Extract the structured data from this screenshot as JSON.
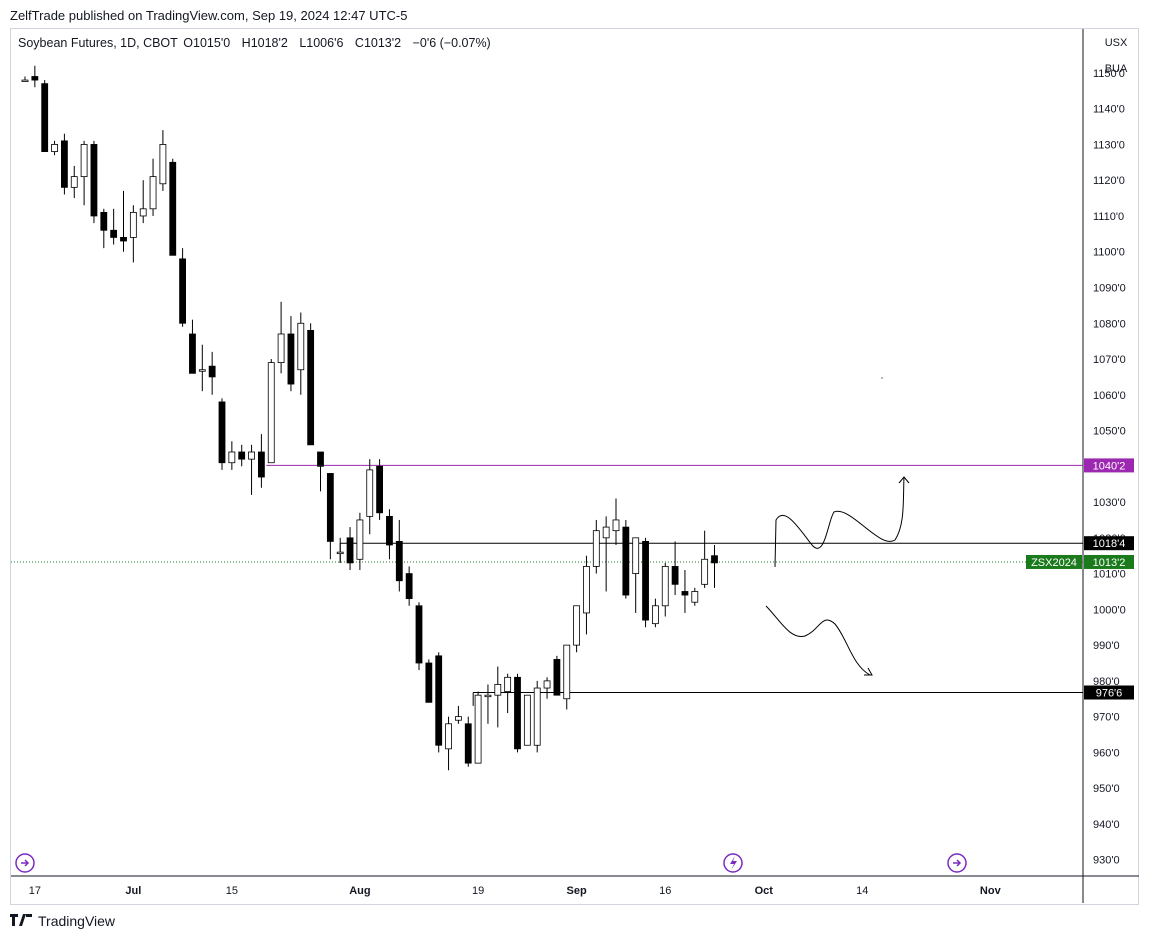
{
  "publisher_line": "ZelfTrade published on TradingView.com, Sep 19, 2024 12:47 UTC-5",
  "legend": {
    "symbol": "Soybean Futures, 1D, CBOT",
    "open_label": "O",
    "open": "1015'0",
    "high_label": "H",
    "high": "1018'2",
    "low_label": "L",
    "low": "1006'6",
    "close_label": "C",
    "close": "1013'2",
    "change": "−0'6 (−0.07%)"
  },
  "currency_buttons": [
    "USX",
    "BUA"
  ],
  "footer_brand": "TradingView",
  "colors": {
    "bull_body": "#ffffff",
    "bear_body": "#000000",
    "wick": "#000000",
    "resistance_line": "#9c27b0",
    "price_line": "#1b7a1b",
    "grid": "#f0f3fa"
  },
  "chart_data": {
    "type": "candlestick",
    "title": "Soybean Futures, 1D, CBOT",
    "y_axis_ticks": [
      "1150'0",
      "1140'0",
      "1130'0",
      "1120'0",
      "1110'0",
      "1100'0",
      "1090'0",
      "1080'0",
      "1070'0",
      "1060'0",
      "1050'0",
      "1040'0",
      "1030'0",
      "1020'0",
      "1010'0",
      "1000'0",
      "990'0",
      "980'0",
      "970'0",
      "960'0",
      "950'0",
      "940'0",
      "930'0"
    ],
    "y_tick_values": [
      1150,
      1140,
      1130,
      1120,
      1110,
      1100,
      1090,
      1080,
      1070,
      1060,
      1050,
      1040,
      1030,
      1020,
      1010,
      1000,
      990,
      980,
      970,
      960,
      950,
      940,
      930
    ],
    "ylim": [
      926,
      1162
    ],
    "x_axis_ticks": [
      {
        "label": "17",
        "bar": 1
      },
      {
        "label": "Jul",
        "bar": 11
      },
      {
        "label": "15",
        "bar": 21
      },
      {
        "label": "Aug",
        "bar": 34
      },
      {
        "label": "19",
        "bar": 46
      },
      {
        "label": "Sep",
        "bar": 56
      },
      {
        "label": "16",
        "bar": 65
      },
      {
        "label": "Oct",
        "bar": 75
      },
      {
        "label": "14",
        "bar": 85
      },
      {
        "label": "Nov",
        "bar": 98
      }
    ],
    "candles": [
      {
        "o": 1148,
        "h": 1149,
        "l": 1148,
        "c": 1148
      },
      {
        "o": 1149,
        "h": 1152,
        "l": 1146,
        "c": 1148
      },
      {
        "o": 1147,
        "h": 1148,
        "l": 1128,
        "c": 1128
      },
      {
        "o": 1128,
        "h": 1131,
        "l": 1127,
        "c": 1130
      },
      {
        "o": 1131,
        "h": 1133,
        "l": 1116,
        "c": 1118
      },
      {
        "o": 1118,
        "h": 1124,
        "l": 1115,
        "c": 1121
      },
      {
        "o": 1121,
        "h": 1131,
        "l": 1113,
        "c": 1130
      },
      {
        "o": 1130,
        "h": 1131,
        "l": 1108,
        "c": 1110
      },
      {
        "o": 1111,
        "h": 1112,
        "l": 1101,
        "c": 1106
      },
      {
        "o": 1106,
        "h": 1112,
        "l": 1102,
        "c": 1104
      },
      {
        "o": 1104,
        "h": 1117,
        "l": 1100,
        "c": 1103
      },
      {
        "o": 1104,
        "h": 1113,
        "l": 1097,
        "c": 1111
      },
      {
        "o": 1110,
        "h": 1120,
        "l": 1108,
        "c": 1112
      },
      {
        "o": 1112,
        "h": 1126,
        "l": 1110,
        "c": 1121
      },
      {
        "o": 1119,
        "h": 1134,
        "l": 1117,
        "c": 1130
      },
      {
        "o": 1125,
        "h": 1126,
        "l": 1099,
        "c": 1099
      },
      {
        "o": 1098,
        "h": 1101,
        "l": 1079,
        "c": 1080
      },
      {
        "o": 1077,
        "h": 1081,
        "l": 1066,
        "c": 1066
      },
      {
        "o": 1067,
        "h": 1074,
        "l": 1061,
        "c": 1067
      },
      {
        "o": 1068,
        "h": 1072,
        "l": 1060,
        "c": 1065
      },
      {
        "o": 1058,
        "h": 1059,
        "l": 1039,
        "c": 1041
      },
      {
        "o": 1041,
        "h": 1047,
        "l": 1039,
        "c": 1044
      },
      {
        "o": 1044,
        "h": 1046,
        "l": 1040,
        "c": 1042
      },
      {
        "o": 1042,
        "h": 1046,
        "l": 1032,
        "c": 1044
      },
      {
        "o": 1044,
        "h": 1049,
        "l": 1034,
        "c": 1037
      },
      {
        "o": 1041,
        "h": 1070,
        "l": 1041,
        "c": 1069
      },
      {
        "o": 1069,
        "h": 1086,
        "l": 1066,
        "c": 1077
      },
      {
        "o": 1077,
        "h": 1082,
        "l": 1061,
        "c": 1063
      },
      {
        "o": 1067,
        "h": 1083,
        "l": 1060,
        "c": 1080
      },
      {
        "o": 1078,
        "h": 1080,
        "l": 1046,
        "c": 1046
      },
      {
        "o": 1044,
        "h": 1044,
        "l": 1033,
        "c": 1040
      },
      {
        "o": 1038,
        "h": 1038,
        "l": 1014,
        "c": 1019
      },
      {
        "o": 1016,
        "h": 1020,
        "l": 1013,
        "c": 1016
      },
      {
        "o": 1020,
        "h": 1023,
        "l": 1011,
        "c": 1013
      },
      {
        "o": 1014,
        "h": 1027,
        "l": 1011,
        "c": 1025
      },
      {
        "o": 1026,
        "h": 1042,
        "l": 1021,
        "c": 1039
      },
      {
        "o": 1040,
        "h": 1042,
        "l": 1025,
        "c": 1027
      },
      {
        "o": 1026,
        "h": 1028,
        "l": 1014,
        "c": 1018
      },
      {
        "o": 1019,
        "h": 1025,
        "l": 1005,
        "c": 1008
      },
      {
        "o": 1010,
        "h": 1012,
        "l": 1001,
        "c": 1003
      },
      {
        "o": 1001,
        "h": 1002,
        "l": 983,
        "c": 985
      },
      {
        "o": 985,
        "h": 986,
        "l": 974,
        "c": 974
      },
      {
        "o": 987,
        "h": 988,
        "l": 960,
        "c": 962
      },
      {
        "o": 961,
        "h": 970,
        "l": 955,
        "c": 968
      },
      {
        "o": 969,
        "h": 973,
        "l": 968,
        "c": 970
      },
      {
        "o": 968,
        "h": 970,
        "l": 956,
        "c": 957
      },
      {
        "o": 957,
        "h": 977,
        "l": 957,
        "c": 976
      },
      {
        "o": 976,
        "h": 979,
        "l": 968,
        "c": 976
      },
      {
        "o": 976,
        "h": 984,
        "l": 967,
        "c": 979
      },
      {
        "o": 977,
        "h": 982,
        "l": 971,
        "c": 981
      },
      {
        "o": 981,
        "h": 982,
        "l": 960,
        "c": 961
      },
      {
        "o": 962,
        "h": 976,
        "l": 962,
        "c": 976
      },
      {
        "o": 962,
        "h": 980,
        "l": 960,
        "c": 978
      },
      {
        "o": 978,
        "h": 981,
        "l": 975,
        "c": 980
      },
      {
        "o": 986,
        "h": 987,
        "l": 976,
        "c": 976
      },
      {
        "o": 975,
        "h": 990,
        "l": 972,
        "c": 990
      },
      {
        "o": 990,
        "h": 1000,
        "l": 988,
        "c": 1001
      },
      {
        "o": 999,
        "h": 1015,
        "l": 993,
        "c": 1012
      },
      {
        "o": 1012,
        "h": 1025,
        "l": 1010,
        "c": 1022
      },
      {
        "o": 1020,
        "h": 1026,
        "l": 1005,
        "c": 1023
      },
      {
        "o": 1022,
        "h": 1031,
        "l": 1018,
        "c": 1025
      },
      {
        "o": 1023,
        "h": 1025,
        "l": 1003,
        "c": 1004
      },
      {
        "o": 1010,
        "h": 1020,
        "l": 999,
        "c": 1020
      },
      {
        "o": 1019,
        "h": 1020,
        "l": 995,
        "c": 997
      },
      {
        "o": 996,
        "h": 1003,
        "l": 995,
        "c": 1001
      },
      {
        "o": 1001,
        "h": 1013,
        "l": 998,
        "c": 1012
      },
      {
        "o": 1012,
        "h": 1019,
        "l": 1004,
        "c": 1007
      },
      {
        "o": 1005,
        "h": 1011,
        "l": 999,
        "c": 1004
      },
      {
        "o": 1002,
        "h": 1006,
        "l": 1001,
        "c": 1005
      },
      {
        "o": 1007,
        "h": 1022,
        "l": 1006,
        "c": 1014
      },
      {
        "o": 1015,
        "h": 1018,
        "l": 1006,
        "c": 1013
      }
    ],
    "horizontal_levels": [
      {
        "label": "1040'2",
        "value": 1040.25,
        "color": "#9c27b0"
      },
      {
        "label": "1018'4",
        "value": 1018.5,
        "color": "#000000"
      },
      {
        "label": "976'6",
        "value": 976.75,
        "color": "#000000"
      }
    ],
    "last_price": {
      "symbol": "ZSX2024",
      "label": "1013'2",
      "value": 1013.25,
      "color": "#1b7a1b"
    }
  }
}
